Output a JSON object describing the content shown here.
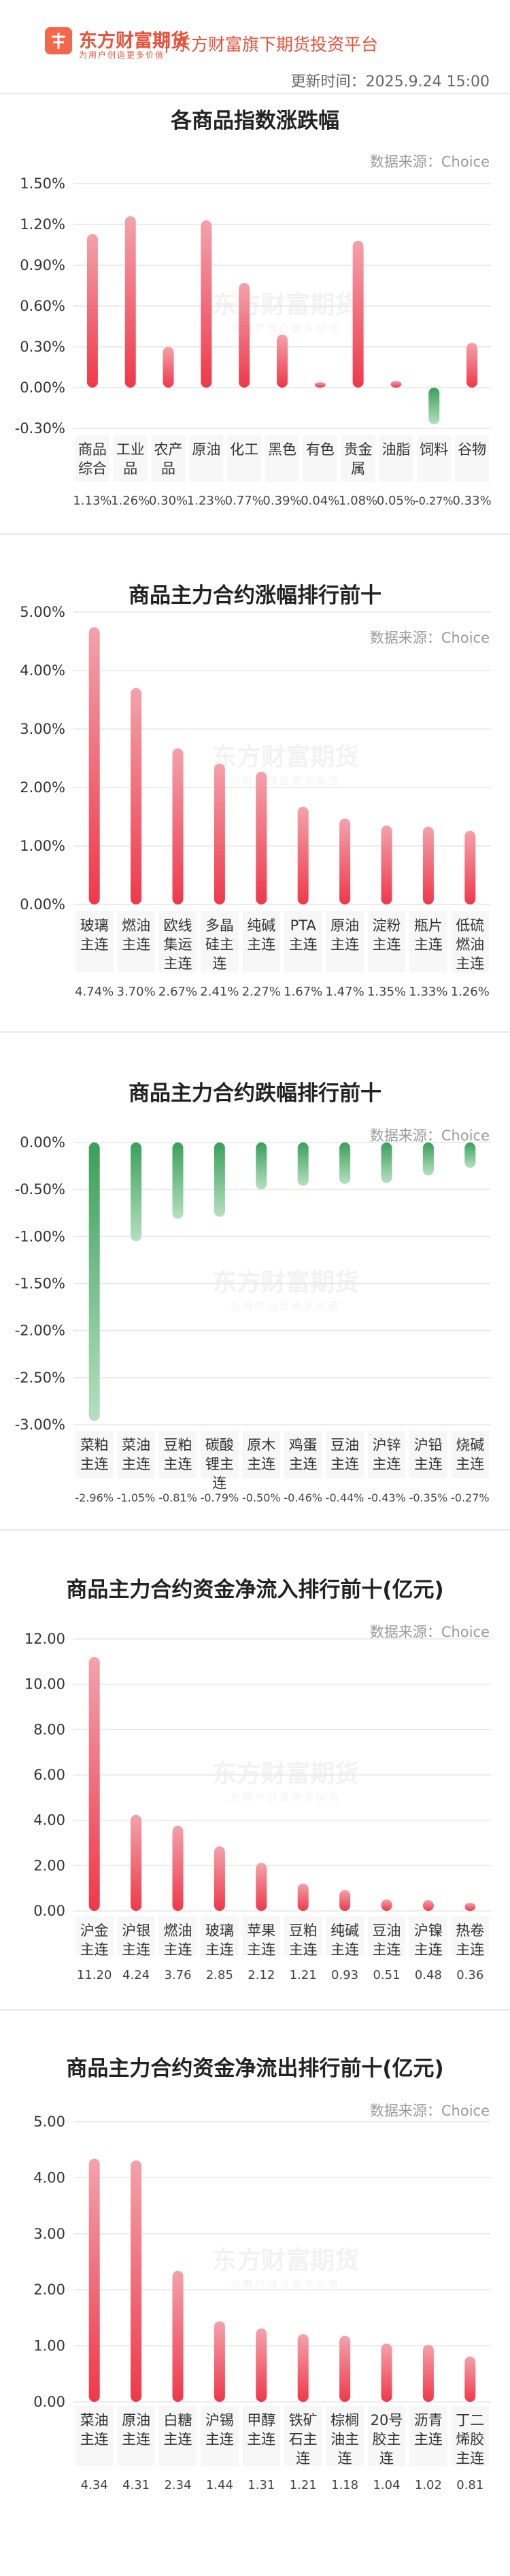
{
  "header": {
    "brand_name": "东方财富期货",
    "brand_slogan": "为用户创造更多价值",
    "tagline": "东方财富旗下期货投资平台",
    "update_time": "更新时间：2025.9.24 15:00"
  },
  "watermark": {
    "name": "东方财富期货",
    "slogan": "为用户创造更多价值"
  },
  "colors": {
    "positive": "#f0384a",
    "negative": "#3aa05a",
    "brand": "#e8513a"
  },
  "chart_data": [
    {
      "type": "bar",
      "title": "各商品指数涨跌幅",
      "source": "数据来源：Choice",
      "ytick_labels": [
        "1.50%",
        "1.20%",
        "0.90%",
        "0.60%",
        "0.30%",
        "0.00%",
        "-0.30%"
      ],
      "ylim": [
        -0.3,
        1.5
      ],
      "categories": [
        [
          "商品",
          "综合"
        ],
        [
          "工业",
          "品"
        ],
        [
          "农产",
          "品"
        ],
        [
          "原油"
        ],
        [
          "化工"
        ],
        [
          "黑色"
        ],
        [
          "有色"
        ],
        [
          "贵金",
          "属"
        ],
        [
          "油脂"
        ],
        [
          "饲料"
        ],
        [
          "谷物"
        ]
      ],
      "values": [
        1.13,
        1.26,
        0.3,
        1.23,
        0.77,
        0.39,
        0.04,
        1.08,
        0.05,
        -0.27,
        0.33
      ],
      "value_labels": [
        "1.13%",
        "1.26%",
        "0.30%",
        "1.23%",
        "0.77%",
        "0.39%",
        "0.04%",
        "1.08%",
        "0.05%",
        "-0.27%",
        "0.33%"
      ]
    },
    {
      "type": "bar",
      "title": "商品主力合约涨幅排行前十",
      "source": "数据来源：Choice",
      "ytick_labels": [
        "5.00%",
        "4.00%",
        "3.00%",
        "2.00%",
        "1.00%",
        "0.00%"
      ],
      "ylim": [
        0,
        5
      ],
      "categories": [
        [
          "玻璃",
          "主连"
        ],
        [
          "燃油",
          "主连"
        ],
        [
          "欧线",
          "集运",
          "主连"
        ],
        [
          "多晶",
          "硅主",
          "连"
        ],
        [
          "纯碱",
          "主连"
        ],
        [
          "PTA",
          "主连"
        ],
        [
          "原油",
          "主连"
        ],
        [
          "淀粉",
          "主连"
        ],
        [
          "瓶片",
          "主连"
        ],
        [
          "低硫",
          "燃油",
          "主连"
        ]
      ],
      "values": [
        4.74,
        3.7,
        2.67,
        2.41,
        2.27,
        1.67,
        1.47,
        1.35,
        1.33,
        1.26
      ],
      "value_labels": [
        "4.74%",
        "3.70%",
        "2.67%",
        "2.41%",
        "2.27%",
        "1.67%",
        "1.47%",
        "1.35%",
        "1.33%",
        "1.26%"
      ]
    },
    {
      "type": "bar",
      "title": "商品主力合约跌幅排行前十",
      "source": "数据来源：Choice",
      "ytick_labels": [
        "0.00%",
        "-0.50%",
        "-1.00%",
        "-1.50%",
        "-2.00%",
        "-2.50%",
        "-3.00%"
      ],
      "ylim": [
        -3,
        0
      ],
      "categories": [
        [
          "菜粕",
          "主连"
        ],
        [
          "菜油",
          "主连"
        ],
        [
          "豆粕",
          "主连"
        ],
        [
          "碳酸",
          "锂主",
          "连"
        ],
        [
          "原木",
          "主连"
        ],
        [
          "鸡蛋",
          "主连"
        ],
        [
          "豆油",
          "主连"
        ],
        [
          "沪锌",
          "主连"
        ],
        [
          "沪铅",
          "主连"
        ],
        [
          "烧碱",
          "主连"
        ]
      ],
      "values": [
        -2.96,
        -1.05,
        -0.81,
        -0.79,
        -0.5,
        -0.46,
        -0.44,
        -0.43,
        -0.35,
        -0.27
      ],
      "value_labels": [
        "-2.96%",
        "-1.05%",
        "-0.81%",
        "-0.79%",
        "-0.50%",
        "-0.46%",
        "-0.44%",
        "-0.43%",
        "-0.35%",
        "-0.27%"
      ]
    },
    {
      "type": "bar",
      "title": "商品主力合约资金净流入排行前十(亿元)",
      "source": "数据来源：Choice",
      "ytick_labels": [
        "12.00",
        "10.00",
        "8.00",
        "6.00",
        "4.00",
        "2.00",
        "0.00"
      ],
      "ylim": [
        0,
        12
      ],
      "categories": [
        [
          "沪金",
          "主连"
        ],
        [
          "沪银",
          "主连"
        ],
        [
          "燃油",
          "主连"
        ],
        [
          "玻璃",
          "主连"
        ],
        [
          "苹果",
          "主连"
        ],
        [
          "豆粕",
          "主连"
        ],
        [
          "纯碱",
          "主连"
        ],
        [
          "豆油",
          "主连"
        ],
        [
          "沪镍",
          "主连"
        ],
        [
          "热卷",
          "主连"
        ]
      ],
      "values": [
        11.2,
        4.24,
        3.76,
        2.85,
        2.12,
        1.21,
        0.93,
        0.51,
        0.48,
        0.36
      ],
      "value_labels": [
        "11.20",
        "4.24",
        "3.76",
        "2.85",
        "2.12",
        "1.21",
        "0.93",
        "0.51",
        "0.48",
        "0.36"
      ]
    },
    {
      "type": "bar",
      "title": "商品主力合约资金净流出排行前十(亿元)",
      "source": "数据来源：Choice",
      "ytick_labels": [
        "5.00",
        "4.00",
        "3.00",
        "2.00",
        "1.00",
        "0.00"
      ],
      "ylim": [
        0,
        5
      ],
      "categories": [
        [
          "菜油",
          "主连"
        ],
        [
          "原油",
          "主连"
        ],
        [
          "白糖",
          "主连"
        ],
        [
          "沪锡",
          "主连"
        ],
        [
          "甲醇",
          "主连"
        ],
        [
          "铁矿",
          "石主",
          "连"
        ],
        [
          "棕榈",
          "油主",
          "连"
        ],
        [
          "20号",
          "胶主",
          "连"
        ],
        [
          "沥青",
          "主连"
        ],
        [
          "丁二",
          "烯胶",
          "主连"
        ]
      ],
      "values": [
        4.34,
        4.31,
        2.34,
        1.44,
        1.31,
        1.21,
        1.18,
        1.04,
        1.02,
        0.81
      ],
      "value_labels": [
        "4.34",
        "4.31",
        "2.34",
        "1.44",
        "1.31",
        "1.21",
        "1.18",
        "1.04",
        "1.02",
        "0.81"
      ]
    }
  ]
}
